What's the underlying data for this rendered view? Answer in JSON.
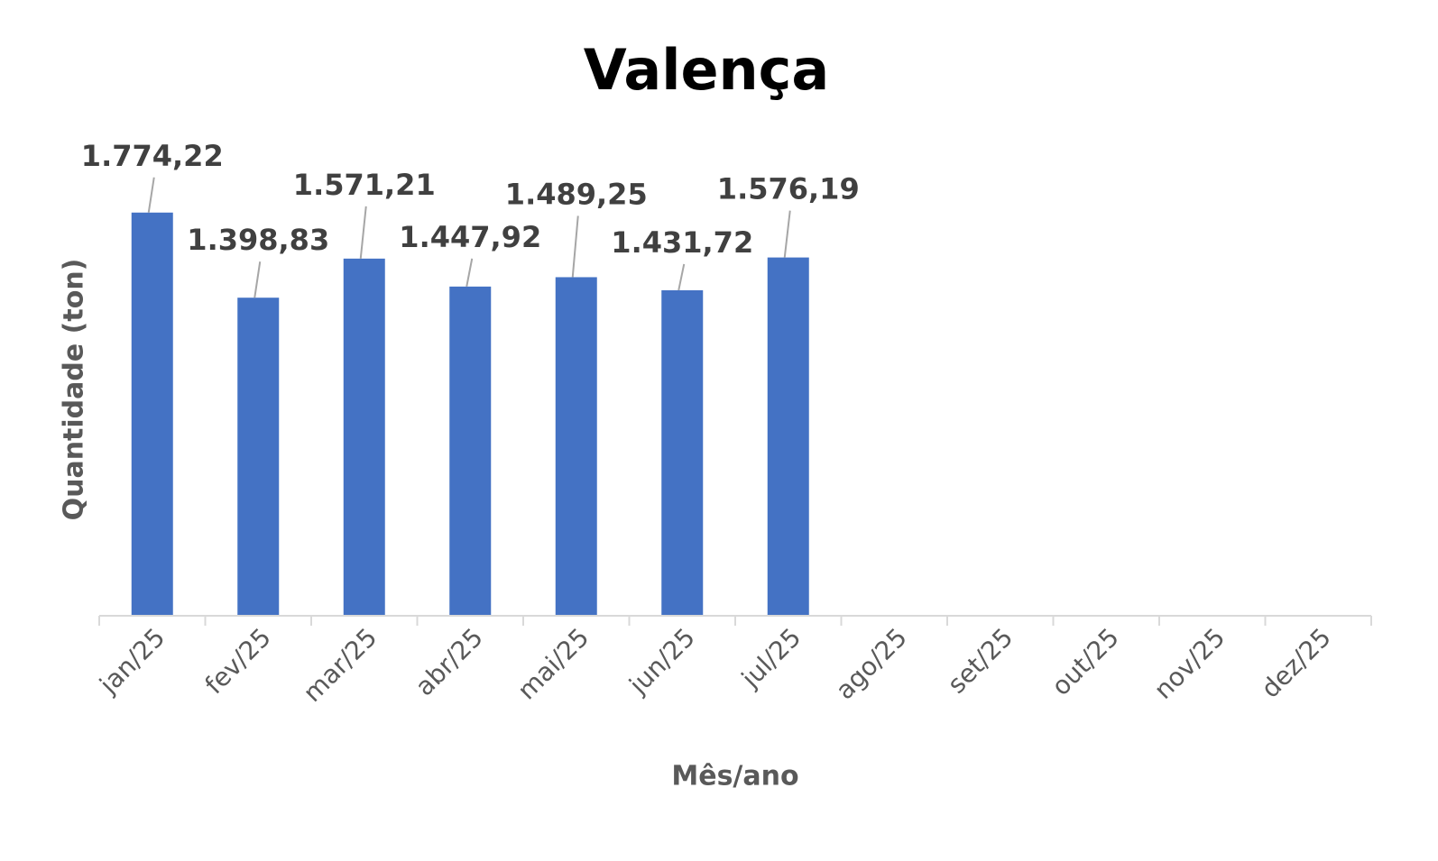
{
  "chart_data": {
    "type": "bar",
    "title": "Valença",
    "x_label": "Mês/ano",
    "y_label": "Quantidade (ton)",
    "categories": [
      "jan/25",
      "fev/25",
      "mar/25",
      "abr/25",
      "mai/25",
      "jun/25",
      "jul/25",
      "ago/25",
      "set/25",
      "out/25",
      "nov/25",
      "dez/25"
    ],
    "values": [
      1774.22,
      1398.83,
      1571.21,
      1447.92,
      1489.25,
      1431.72,
      1576.19,
      null,
      null,
      null,
      null,
      null
    ],
    "value_labels": [
      "1.774,22",
      "1.398,83",
      "1.571,21",
      "1.447,92",
      "1.489,25",
      "1.431,72",
      "1.576,19",
      null,
      null,
      null,
      null,
      null
    ],
    "color": "#4472c4",
    "ylim": [
      0,
      2000
    ]
  }
}
